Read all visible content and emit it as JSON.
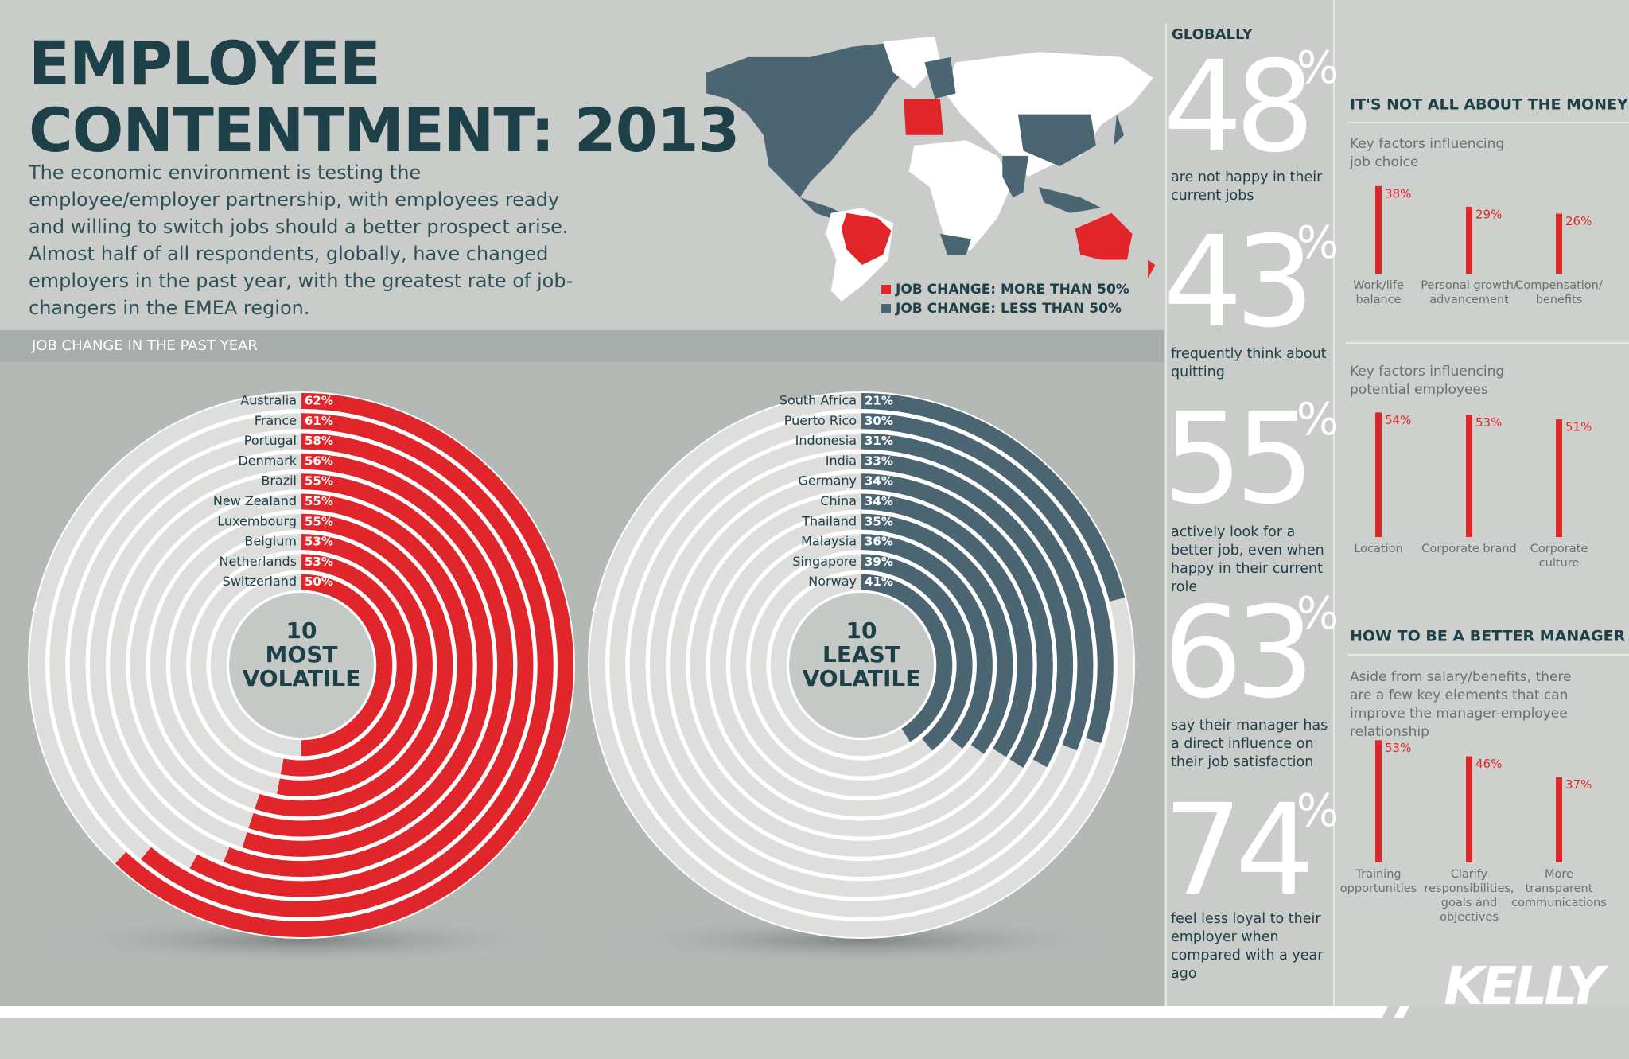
{
  "header": {
    "title": [
      "EMPLOYEE",
      "CONTENTMENT: 2013"
    ],
    "intro": "The economic environment is testing the employee/employer partnership, with employees ready and willing to switch jobs should a better prospect arise. Almost half of all respondents, globally, have changed employers in the past year, with the greatest rate of job-changers in the EMEA region."
  },
  "map": {
    "legend": [
      {
        "label": "JOB CHANGE: MORE THAN 50%",
        "color": "#e0262b"
      },
      {
        "label": "JOB CHANGE: LESS THAN 50%",
        "color": "#4b6572"
      }
    ]
  },
  "section_title": "JOB CHANGE IN THE PAST YEAR",
  "chart_data": [
    {
      "type": "radial_bar",
      "center_label": [
        "10",
        "MOST",
        "VOLATILE"
      ],
      "color": "#e0262b",
      "lim": [
        0,
        100
      ],
      "categories": [
        "Australia",
        "France",
        "Portugal",
        "Denmark",
        "Brazil",
        "New Zealand",
        "Luxembourg",
        "Belgium",
        "Netherlands",
        "Switzerland"
      ],
      "values": [
        62,
        61,
        58,
        56,
        55,
        55,
        55,
        53,
        53,
        50
      ],
      "value_labels": [
        "62%",
        "61%",
        "58%",
        "56%",
        "55%",
        "55%",
        "55%",
        "53%",
        "53%",
        "50%"
      ]
    },
    {
      "type": "radial_bar",
      "center_label": [
        "10",
        "LEAST",
        "VOLATILE"
      ],
      "color": "#4b6572",
      "lim": [
        0,
        100
      ],
      "categories": [
        "South Africa",
        "Puerto Rico",
        "Indonesia",
        "India",
        "Germany",
        "China",
        "Thailand",
        "Malaysia",
        "Singapore",
        "Norway"
      ],
      "values": [
        21,
        30,
        31,
        33,
        34,
        34,
        35,
        36,
        39,
        41
      ],
      "value_labels": [
        "21%",
        "30%",
        "31%",
        "33%",
        "34%",
        "34%",
        "35%",
        "36%",
        "39%",
        "41%"
      ]
    },
    {
      "type": "bar",
      "subtitle": "Key factors influencing job choice",
      "color": "#e0262b",
      "ylim": [
        0,
        100
      ],
      "categories": [
        "Work/life balance",
        "Personal growth/ advancement",
        "Compensation/ benefits"
      ],
      "values": [
        38,
        29,
        26
      ],
      "value_labels": [
        "38%",
        "29%",
        "26%"
      ]
    },
    {
      "type": "bar",
      "subtitle": "Key factors influencing potential employees",
      "color": "#e0262b",
      "ylim": [
        0,
        100
      ],
      "categories": [
        "Location",
        "Corporate brand",
        "Corporate culture"
      ],
      "values": [
        54,
        53,
        51
      ],
      "value_labels": [
        "54%",
        "53%",
        "51%"
      ]
    },
    {
      "type": "bar",
      "subtitle": "Aside from salary/benefits, there are a few key elements that can improve the manager-employee relationship",
      "color": "#e0262b",
      "ylim": [
        0,
        100
      ],
      "categories": [
        "Training opportunities",
        "Clarify responsibilities, goals and objectives",
        "More transparent communications"
      ],
      "values": [
        53,
        46,
        37
      ],
      "value_labels": [
        "53%",
        "46%",
        "37%"
      ]
    }
  ],
  "globally": {
    "title": "GLOBALLY",
    "stats": [
      {
        "value": 48,
        "unit": "%",
        "text": "are not happy in their current jobs"
      },
      {
        "value": 43,
        "unit": "%",
        "text": "frequently think about quitting"
      },
      {
        "value": 55,
        "unit": "%",
        "text": "actively look for a better job, even when happy in their current role"
      },
      {
        "value": 63,
        "unit": "%",
        "text": "say their manager has a direct influence on their job satisfaction"
      },
      {
        "value": 74,
        "unit": "%",
        "text": "feel less loyal to their employer when compared with a year ago"
      }
    ]
  },
  "money": {
    "title": "IT'S NOT ALL ABOUT THE MONEY"
  },
  "manager": {
    "title": "HOW TO BE A BETTER MANAGER"
  },
  "logo": "KELLY"
}
